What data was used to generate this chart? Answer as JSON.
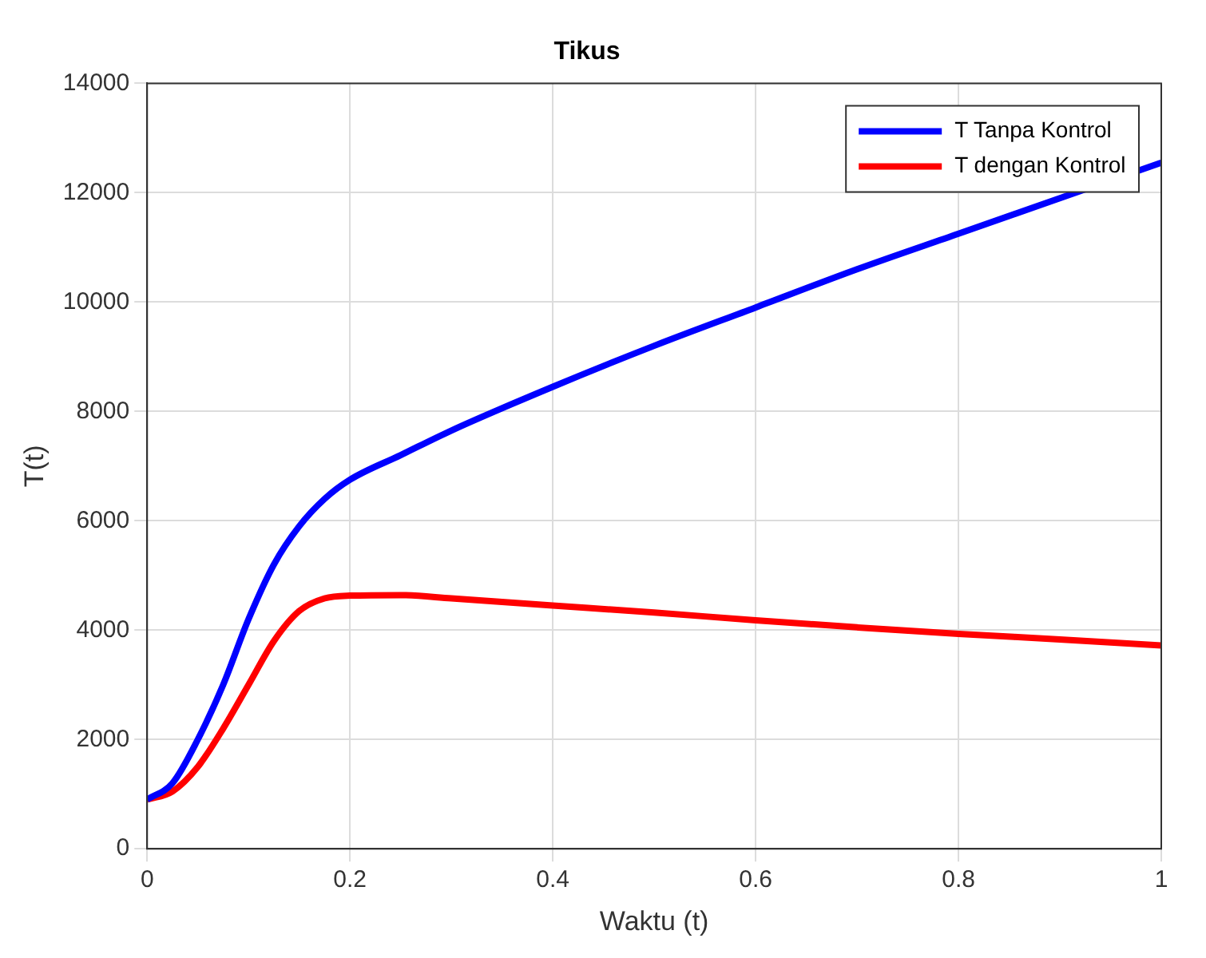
{
  "chart_data": {
    "type": "line",
    "title": "Tikus",
    "xlabel": "Waktu (t)",
    "ylabel": "T(t)",
    "xlim": [
      0,
      1
    ],
    "xticks": [
      0,
      0.2,
      0.4,
      0.6,
      0.8,
      1
    ],
    "ylim": [
      0,
      14000
    ],
    "yticks": [
      0,
      2000,
      4000,
      6000,
      8000,
      10000,
      12000,
      14000
    ],
    "grid": true,
    "legend": "top right",
    "marker": "none",
    "line_style": "solid",
    "x": [
      0,
      0.025,
      0.05,
      0.075,
      0.1,
      0.125,
      0.15,
      0.175,
      0.2,
      0.25,
      0.3,
      0.4,
      0.5,
      0.6,
      0.7,
      0.8,
      0.9,
      1
    ],
    "series": [
      {
        "name": "T Tanpa Kontrol",
        "color": "#0000ff",
        "values": [
          900,
          1200,
          2000,
          3000,
          4200,
          5200,
          5900,
          6400,
          6750,
          7200,
          7650,
          8450,
          9200,
          9900,
          10600,
          11250,
          11900,
          12550
        ]
      },
      {
        "name": "T dengan Kontrol",
        "color": "#ff0000",
        "values": [
          900,
          1050,
          1500,
          2200,
          3000,
          3800,
          4350,
          4580,
          4630,
          4640,
          4580,
          4450,
          4320,
          4180,
          4050,
          3930,
          3830,
          3720
        ]
      }
    ]
  }
}
